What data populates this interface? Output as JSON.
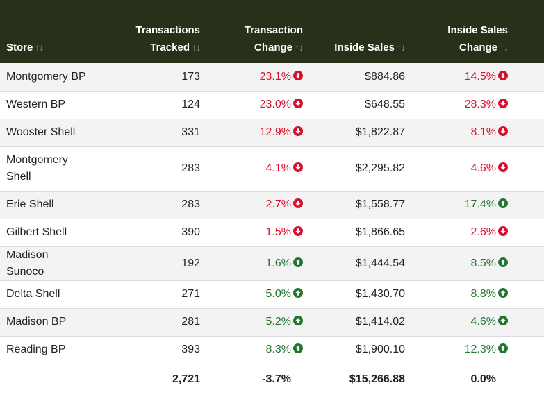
{
  "headers": {
    "store": "Store",
    "transactions_line1": "Transactions",
    "transactions_line2": "Tracked",
    "tx_change_line1": "Transaction",
    "tx_change_line2": "Change",
    "inside_sales": "Inside Sales",
    "is_change_line1": "Inside Sales",
    "is_change_line2": "Change",
    "sort_glyph": "↑↓",
    "sort_active_up": "↑",
    "sort_active_down": "↓"
  },
  "colors": {
    "header_bg": "#283019",
    "negative": "#d80f2a",
    "positive": "#21772e"
  },
  "rows": [
    {
      "store": "Montgomery BP",
      "tracked": "173",
      "tx_change": "23.1%",
      "tx_dir": "down",
      "inside_sales": "$884.86",
      "is_change": "14.5%",
      "is_dir": "down"
    },
    {
      "store": "Western BP",
      "tracked": "124",
      "tx_change": "23.0%",
      "tx_dir": "down",
      "inside_sales": "$648.55",
      "is_change": "28.3%",
      "is_dir": "down"
    },
    {
      "store": "Wooster Shell",
      "tracked": "331",
      "tx_change": "12.9%",
      "tx_dir": "down",
      "inside_sales": "$1,822.87",
      "is_change": "8.1%",
      "is_dir": "down"
    },
    {
      "store": "Montgomery Shell",
      "tracked": "283",
      "tx_change": "4.1%",
      "tx_dir": "down",
      "inside_sales": "$2,295.82",
      "is_change": "4.6%",
      "is_dir": "down"
    },
    {
      "store": "Erie Shell",
      "tracked": "283",
      "tx_change": "2.7%",
      "tx_dir": "down",
      "inside_sales": "$1,558.77",
      "is_change": "17.4%",
      "is_dir": "up"
    },
    {
      "store": "Gilbert Shell",
      "tracked": "390",
      "tx_change": "1.5%",
      "tx_dir": "down",
      "inside_sales": "$1,866.65",
      "is_change": "2.6%",
      "is_dir": "down"
    },
    {
      "store": "Madison Sunoco",
      "tracked": "192",
      "tx_change": "1.6%",
      "tx_dir": "up",
      "inside_sales": "$1,444.54",
      "is_change": "8.5%",
      "is_dir": "up"
    },
    {
      "store": "Delta Shell",
      "tracked": "271",
      "tx_change": "5.0%",
      "tx_dir": "up",
      "inside_sales": "$1,430.70",
      "is_change": "8.8%",
      "is_dir": "up"
    },
    {
      "store": "Madison BP",
      "tracked": "281",
      "tx_change": "5.2%",
      "tx_dir": "up",
      "inside_sales": "$1,414.02",
      "is_change": "4.6%",
      "is_dir": "up"
    },
    {
      "store": "Reading BP",
      "tracked": "393",
      "tx_change": "8.3%",
      "tx_dir": "up",
      "inside_sales": "$1,900.10",
      "is_change": "12.3%",
      "is_dir": "up"
    }
  ],
  "totals": {
    "tracked": "2,721",
    "tx_change": "-3.7%",
    "inside_sales": "$15,266.88",
    "is_change": "0.0%"
  }
}
